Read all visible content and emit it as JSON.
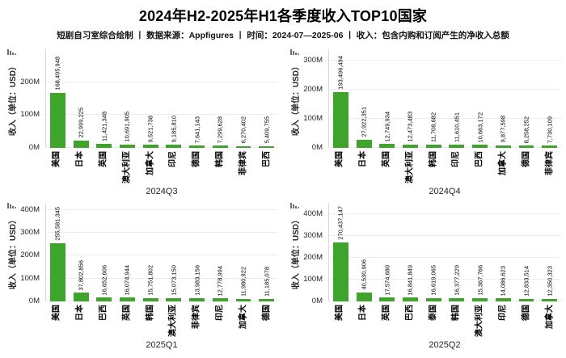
{
  "header": {
    "title": "2024年H2-2025年H1各季度收入TOP10国家",
    "subtitle": "短剧自习室综合绘制 丨 数据来源：Appfigures 丨 时间：2024-07—2025-06 丨 收入：包含内购和订阅产生的净收入总额"
  },
  "colors": {
    "bar": "#3EA42C",
    "grid": "#EDEDED",
    "axis_spine": "#D9D9D9",
    "title_text": "#000000",
    "tick_text": "#262626"
  },
  "icons": {
    "corner_glyph": "mini-bar-chart-icon"
  },
  "chart_data": [
    {
      "type": "bar",
      "title": "2024Q3",
      "ylabel": "收入（单位：USD）",
      "categories": [
        "美国",
        "日本",
        "英国",
        "澳大利亚",
        "加拿大",
        "印尼",
        "德国",
        "韩国",
        "菲律宾",
        "巴西"
      ],
      "values": [
        168495948,
        22999225,
        11421348,
        10691905,
        9521738,
        9185810,
        7641143,
        7299628,
        6270402,
        5409755
      ],
      "ytick_labels": [
        "0M",
        "100M",
        "200M"
      ],
      "ytick_values": [
        0,
        100000000,
        200000000
      ],
      "ylim": [
        0,
        300000000
      ],
      "grid": true,
      "legend": "none"
    },
    {
      "type": "bar",
      "title": "2024Q4",
      "ylabel": "收入（单位：USD）",
      "categories": [
        "美国",
        "日本",
        "英国",
        "澳大利亚",
        "韩国",
        "印尼",
        "巴西",
        "加拿大",
        "德国",
        "菲律宾"
      ],
      "values": [
        193496494,
        27922351,
        12749934,
        12473483,
        11708682,
        11610451,
        10663172,
        9877598,
        8258252,
        7730109
      ],
      "ytick_labels": [
        "0M",
        "100M",
        "200M",
        "300M"
      ],
      "ytick_values": [
        0,
        100000000,
        200000000,
        300000000
      ],
      "ylim": [
        0,
        340000000
      ],
      "grid": true,
      "legend": "none"
    },
    {
      "type": "bar",
      "title": "2025Q1",
      "ylabel": "收入（单位：USD）",
      "categories": [
        "美国",
        "日本",
        "巴西",
        "英国",
        "韩国",
        "澳大利亚",
        "菲律宾",
        "印尼",
        "加拿大",
        "德国"
      ],
      "values": [
        255581345,
        37802856,
        16652606,
        16074944,
        15751802,
        15073150,
        13983156,
        12778994,
        11980922,
        11185078
      ],
      "ytick_labels": [
        "0M",
        "100M",
        "200M",
        "300M",
        "400M"
      ],
      "ytick_values": [
        0,
        100000000,
        200000000,
        300000000,
        400000000
      ],
      "ylim": [
        0,
        430000000
      ],
      "grid": true,
      "legend": "none"
    },
    {
      "type": "bar",
      "title": "2025Q2",
      "ylabel": "收入（单位：USD）",
      "categories": [
        "美国",
        "日本",
        "英国",
        "巴西",
        "泰国",
        "韩国",
        "澳大利亚",
        "印尼",
        "德国",
        "加拿大"
      ],
      "values": [
        270437147,
        40530906,
        17574680,
        16841849,
        16619065,
        16377229,
        15367766,
        14086623,
        12833514,
        12350323
      ],
      "ytick_labels": [
        "0M",
        "100M",
        "200M",
        "300M",
        "400M"
      ],
      "ytick_values": [
        0,
        100000000,
        200000000,
        300000000,
        400000000
      ],
      "ylim": [
        0,
        450000000
      ],
      "grid": true,
      "legend": "none"
    }
  ]
}
